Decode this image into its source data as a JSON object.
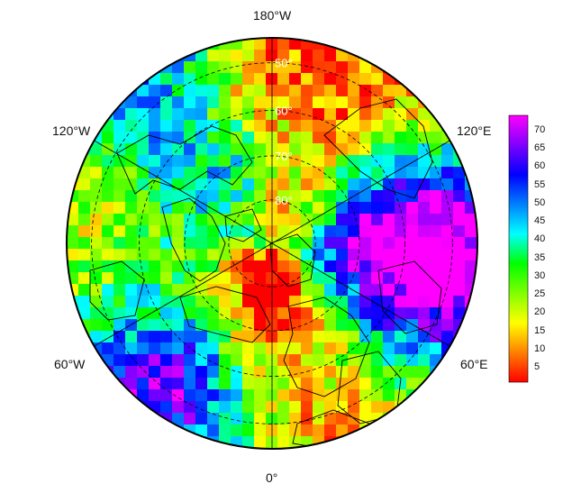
{
  "map": {
    "projection": "north-polar-stereographic",
    "longitude_labels": {
      "top": "180°W",
      "bottom": "0°",
      "upper_left": "120°W",
      "upper_right": "120°E",
      "lower_left": "60°W",
      "lower_right": "60°E"
    },
    "latitude_labels": [
      "50°",
      "60°",
      "70°",
      "80°"
    ],
    "outline_color": "#000000",
    "gridline_style": "dashed"
  },
  "colorbar": {
    "ticks": [
      "70",
      "65",
      "60",
      "55",
      "50",
      "45",
      "40",
      "35",
      "30",
      "25",
      "20",
      "15",
      "10",
      "5"
    ],
    "range": [
      1,
      74
    ],
    "stops": [
      "#ff0000",
      "#ff8000",
      "#ffff00",
      "#80ff00",
      "#00ff00",
      "#00ffff",
      "#0080ff",
      "#0000ff",
      "#8000ff",
      "#ff00ff"
    ]
  }
}
